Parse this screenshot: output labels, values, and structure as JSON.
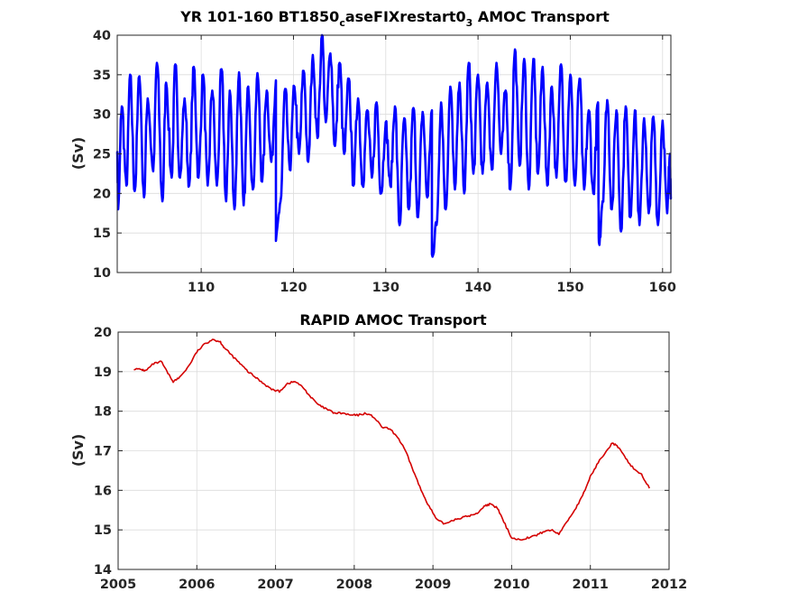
{
  "chart_data": [
    {
      "type": "line",
      "title_main": "YR 101-160 BT1850",
      "title_sub1": "c",
      "title_mid": "aseFIXrestart0",
      "title_sub2": "3",
      "title_tail": " AMOC Transport",
      "ylabel": "(Sv)",
      "xlabel": "",
      "xlim": [
        100.9,
        160.9
      ],
      "ylim": [
        10,
        40
      ],
      "xticks": [
        110,
        120,
        130,
        140,
        150,
        160
      ],
      "yticks": [
        10,
        15,
        20,
        25,
        30,
        35,
        40
      ],
      "grid": true,
      "line_color": "#0000ff",
      "series": [
        {
          "description_free": true,
          "peaks": [
            [
              100.9,
              25
            ],
            [
              101.4,
              31
            ],
            [
              102.3,
              35
            ],
            [
              103.3,
              34.8
            ],
            [
              104.2,
              32
            ],
            [
              105.2,
              36.5
            ],
            [
              106.2,
              34
            ],
            [
              107.2,
              36.3
            ],
            [
              108.2,
              32
            ],
            [
              109.2,
              36
            ],
            [
              110.2,
              35
            ],
            [
              111.2,
              33
            ],
            [
              112.2,
              35.7
            ],
            [
              113.1,
              33
            ],
            [
              114.1,
              35.3
            ],
            [
              115.1,
              33.5
            ],
            [
              116.1,
              35.2
            ],
            [
              117.1,
              33
            ],
            [
              118.1,
              34.3
            ],
            [
              119.1,
              33.2
            ],
            [
              120.1,
              33.5
            ],
            [
              121.1,
              35.5
            ],
            [
              122.1,
              37.5
            ],
            [
              123.1,
              40
            ],
            [
              124,
              37.7
            ],
            [
              125,
              36.5
            ],
            [
              126,
              34.5
            ],
            [
              127,
              32
            ],
            [
              128,
              30.5
            ],
            [
              129,
              31.5
            ],
            [
              130,
              29
            ],
            [
              131,
              31
            ],
            [
              132,
              29.5
            ],
            [
              133,
              30.8
            ],
            [
              134,
              30.3
            ],
            [
              135,
              30.5
            ],
            [
              136,
              31.5
            ],
            [
              137,
              33.5
            ],
            [
              138,
              34
            ],
            [
              139,
              36.5
            ],
            [
              140,
              35
            ],
            [
              141,
              34
            ],
            [
              142,
              36.5
            ],
            [
              143,
              33
            ],
            [
              144,
              38.2
            ],
            [
              145,
              37
            ],
            [
              146,
              37
            ],
            [
              147,
              36
            ],
            [
              148,
              33.5
            ],
            [
              149,
              36.3
            ],
            [
              150,
              35
            ],
            [
              151,
              34.5
            ],
            [
              152,
              30.5
            ],
            [
              153,
              31.5
            ],
            [
              154,
              31.8
            ],
            [
              155,
              30.5
            ],
            [
              156,
              31
            ],
            [
              157,
              30.5
            ],
            [
              158,
              29.5
            ],
            [
              159,
              29.7
            ],
            [
              160,
              29.2
            ],
            [
              160.8,
              25
            ]
          ],
          "troughs": [
            [
              101,
              18
            ],
            [
              101.9,
              21
            ],
            [
              102.8,
              20.3
            ],
            [
              103.8,
              19.5
            ],
            [
              104.8,
              22.8
            ],
            [
              105.8,
              19
            ],
            [
              106.8,
              22
            ],
            [
              107.7,
              22
            ],
            [
              108.7,
              21
            ],
            [
              109.7,
              22
            ],
            [
              110.7,
              21
            ],
            [
              111.7,
              21
            ],
            [
              112.7,
              19
            ],
            [
              113.6,
              18
            ],
            [
              114.6,
              18.5
            ],
            [
              115.6,
              20.5
            ],
            [
              116.6,
              21.5
            ],
            [
              117.6,
              24
            ],
            [
              118.1,
              14
            ],
            [
              118.6,
              19
            ],
            [
              119.6,
              23
            ],
            [
              120.6,
              25
            ],
            [
              121.6,
              24
            ],
            [
              122.6,
              27
            ],
            [
              123.5,
              29
            ],
            [
              124.5,
              26
            ],
            [
              125.5,
              25
            ],
            [
              126.5,
              21
            ],
            [
              127.5,
              21
            ],
            [
              128.5,
              22
            ],
            [
              129.5,
              20
            ],
            [
              130.5,
              21
            ],
            [
              131.5,
              16
            ],
            [
              132.5,
              18
            ],
            [
              133.5,
              17
            ],
            [
              134.5,
              19.5
            ],
            [
              135,
              12.3
            ],
            [
              135.5,
              16
            ],
            [
              136.5,
              18
            ],
            [
              137.5,
              20.5
            ],
            [
              138.5,
              20
            ],
            [
              139.5,
              22.5
            ],
            [
              140.5,
              22.5
            ],
            [
              141.5,
              23
            ],
            [
              142.5,
              25
            ],
            [
              143.5,
              20.5
            ],
            [
              144.5,
              23.5
            ],
            [
              145.5,
              20.5
            ],
            [
              146.5,
              22.5
            ],
            [
              147.5,
              21
            ],
            [
              148.5,
              22
            ],
            [
              149.5,
              21.5
            ],
            [
              150.5,
              21
            ],
            [
              151.5,
              20.5
            ],
            [
              152.5,
              20
            ],
            [
              153.1,
              13.8
            ],
            [
              153.5,
              19
            ],
            [
              154.5,
              18
            ],
            [
              155.5,
              15.2
            ],
            [
              156.5,
              17
            ],
            [
              157.5,
              16
            ],
            [
              158.5,
              17.5
            ],
            [
              159.5,
              16
            ],
            [
              160.5,
              17.5
            ],
            [
              160.9,
              19.5
            ]
          ]
        }
      ]
    },
    {
      "type": "line",
      "title": "RAPID AMOC Transport",
      "ylabel": "(Sv)",
      "xlabel": "",
      "xlim": [
        2005,
        2012
      ],
      "ylim": [
        14,
        20
      ],
      "xticks": [
        2005,
        2006,
        2007,
        2008,
        2009,
        2010,
        2011,
        2012
      ],
      "yticks": [
        14,
        15,
        16,
        17,
        18,
        19,
        20
      ],
      "grid": true,
      "line_color": "#d40000",
      "series": [
        {
          "x": [
            2005.2,
            2005.3,
            2005.35,
            2005.45,
            2005.55,
            2005.62,
            2005.7,
            2005.78,
            2005.9,
            2006.0,
            2006.1,
            2006.2,
            2006.3,
            2006.35,
            2006.45,
            2006.55,
            2006.65,
            2006.75,
            2006.85,
            2006.95,
            2007.05,
            2007.15,
            2007.25,
            2007.35,
            2007.45,
            2007.55,
            2007.65,
            2007.75,
            2007.85,
            2007.95,
            2008.05,
            2008.15,
            2008.25,
            2008.35,
            2008.45,
            2008.55,
            2008.65,
            2008.75,
            2008.85,
            2008.95,
            2009.05,
            2009.15,
            2009.25,
            2009.35,
            2009.45,
            2009.55,
            2009.65,
            2009.72,
            2009.82,
            2009.9,
            2010.0,
            2010.1,
            2010.2,
            2010.3,
            2010.4,
            2010.5,
            2010.6,
            2010.7,
            2010.8,
            2010.9,
            2011.0,
            2011.1,
            2011.2,
            2011.28,
            2011.35,
            2011.45,
            2011.55,
            2011.65,
            2011.75
          ],
          "y": [
            19.07,
            19.05,
            19.02,
            19.2,
            19.25,
            19.0,
            18.75,
            18.85,
            19.15,
            19.5,
            19.7,
            19.82,
            19.75,
            19.6,
            19.4,
            19.2,
            19.0,
            18.85,
            18.7,
            18.55,
            18.5,
            18.7,
            18.75,
            18.6,
            18.35,
            18.15,
            18.05,
            17.95,
            17.95,
            17.9,
            17.9,
            17.95,
            17.85,
            17.6,
            17.55,
            17.35,
            17.0,
            16.5,
            16.0,
            15.6,
            15.25,
            15.15,
            15.25,
            15.3,
            15.35,
            15.4,
            15.6,
            15.65,
            15.55,
            15.2,
            14.8,
            14.75,
            14.8,
            14.85,
            14.95,
            15.0,
            14.9,
            15.2,
            15.5,
            15.85,
            16.35,
            16.7,
            17.0,
            17.2,
            17.1,
            16.8,
            16.55,
            16.4,
            16.05
          ]
        }
      ]
    }
  ]
}
